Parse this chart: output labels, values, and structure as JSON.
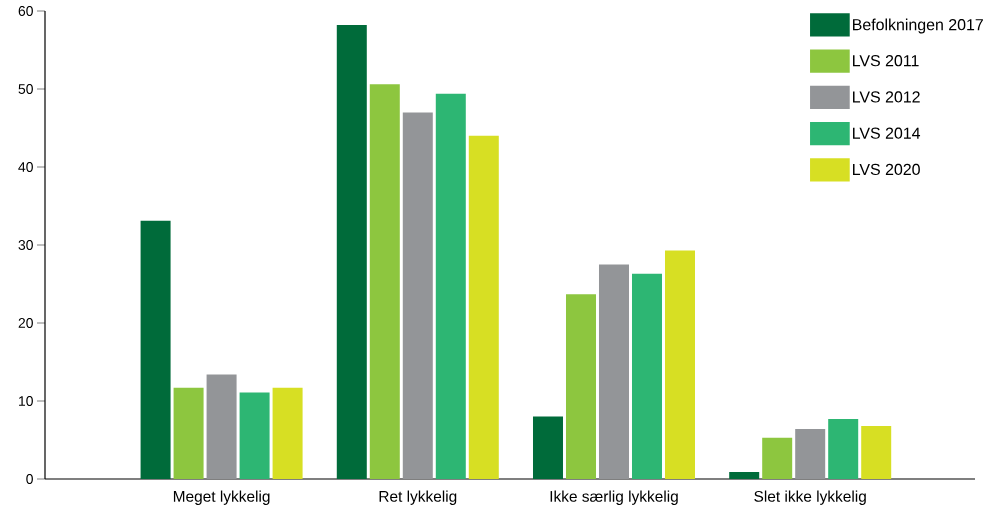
{
  "chart_data": {
    "type": "bar",
    "categories": [
      "Meget lykkelig",
      "Ret lykkelig",
      "Ikke særlig lykkelig",
      "Slet ikke lykkelig"
    ],
    "series": [
      {
        "name": "Befolkningen 2017",
        "color": "#006b3a",
        "values": [
          33.1,
          58.2,
          8.0,
          0.9
        ]
      },
      {
        "name": "LVS 2011",
        "color": "#8dc63f",
        "values": [
          11.7,
          50.6,
          23.7,
          5.3
        ]
      },
      {
        "name": "LVS 2012",
        "color": "#939598",
        "values": [
          13.4,
          47.0,
          27.5,
          6.4
        ]
      },
      {
        "name": "LVS 2014",
        "color": "#2db673",
        "values": [
          11.1,
          49.4,
          26.3,
          7.7
        ]
      },
      {
        "name": "LVS 2020",
        "color": "#d7df23",
        "values": [
          11.7,
          44.0,
          29.3,
          6.8
        ]
      }
    ],
    "ylim": [
      0,
      60
    ],
    "yticks": [
      0,
      10,
      20,
      30,
      40,
      50,
      60
    ],
    "legend": "top right",
    "grid": false
  }
}
